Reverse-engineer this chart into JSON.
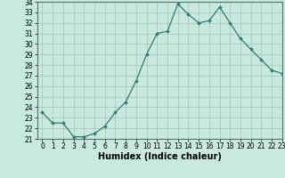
{
  "x": [
    0,
    1,
    2,
    3,
    4,
    5,
    6,
    7,
    8,
    9,
    10,
    11,
    12,
    13,
    14,
    15,
    16,
    17,
    18,
    19,
    20,
    21,
    22,
    23
  ],
  "y": [
    23.5,
    22.5,
    22.5,
    21.2,
    21.2,
    21.5,
    22.2,
    23.5,
    24.5,
    26.5,
    29.0,
    31.0,
    31.2,
    33.8,
    32.8,
    32.0,
    32.2,
    33.5,
    32.0,
    30.5,
    29.5,
    28.5,
    27.5,
    27.2
  ],
  "line_color": "#2e7d6e",
  "marker_color": "#2e7d6e",
  "bg_color": "#c8e8e0",
  "grid_color": "#a0c4bc",
  "xlabel": "Humidex (Indice chaleur)",
  "ylim": [
    21,
    34
  ],
  "xlim": [
    -0.5,
    23
  ],
  "yticks": [
    21,
    22,
    23,
    24,
    25,
    26,
    27,
    28,
    29,
    30,
    31,
    32,
    33,
    34
  ],
  "xticks": [
    0,
    1,
    2,
    3,
    4,
    5,
    6,
    7,
    8,
    9,
    10,
    11,
    12,
    13,
    14,
    15,
    16,
    17,
    18,
    19,
    20,
    21,
    22,
    23
  ],
  "tick_fontsize": 5.5,
  "xlabel_fontsize": 7
}
